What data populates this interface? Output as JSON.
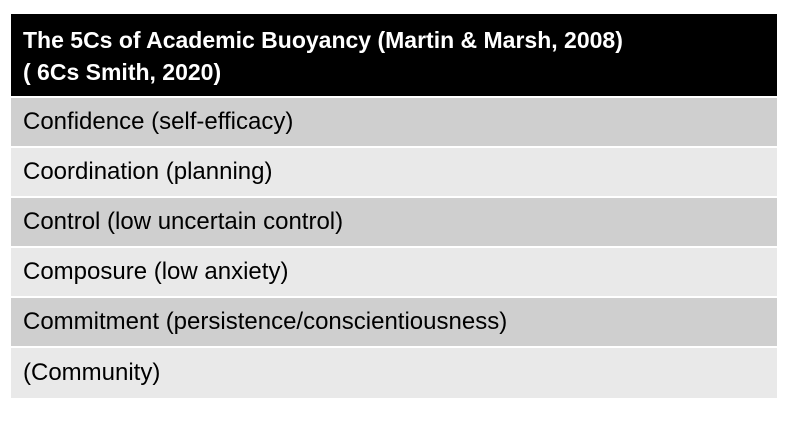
{
  "table": {
    "header": {
      "line1": "The 5Cs of Academic Buoyancy  (Martin & Marsh, 2008)",
      "line2": "( 6Cs Smith, 2020)"
    },
    "rows": [
      "Confidence (self-efficacy)",
      "Coordination (planning)",
      "Control (low uncertain control)",
      "Composure (low anxiety)",
      "Commitment (persistence/conscientiousness)",
      "(Community)"
    ],
    "colors": {
      "header_bg": "#000000",
      "header_text": "#ffffff",
      "row_dark": "#cfcfcf",
      "row_light": "#e9e9e9"
    }
  }
}
